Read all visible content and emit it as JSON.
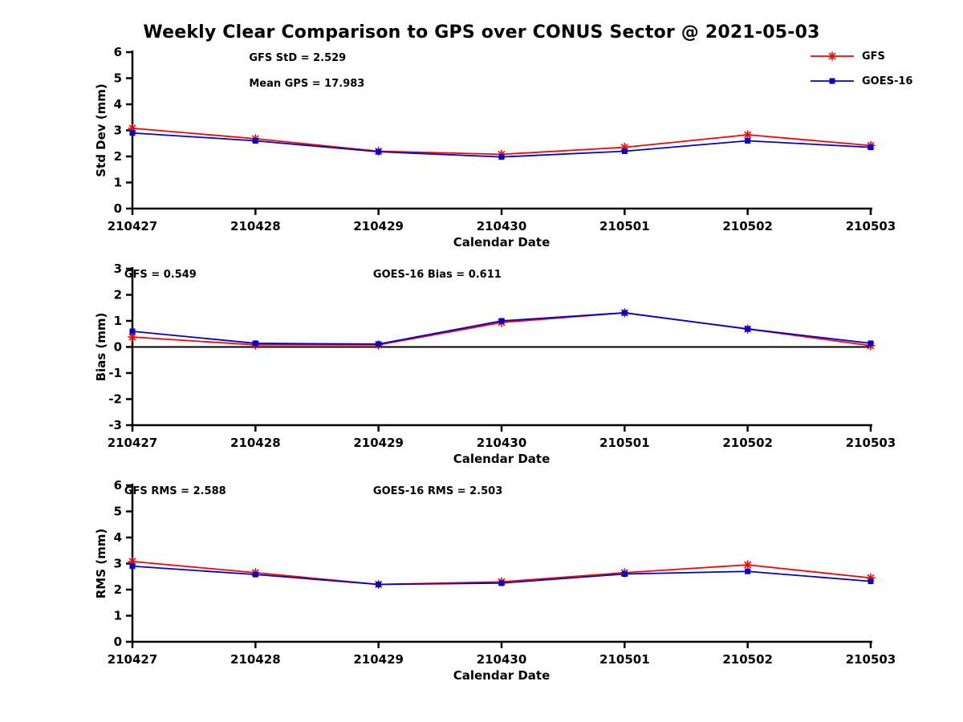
{
  "title": "Weekly Clear Comparison to GPS over CONUS Sector @ 2021-05-03",
  "legend": [
    {
      "label": "GFS",
      "color": "#ff0000",
      "marker": "asterisk"
    },
    {
      "label": "GOES-16",
      "color": "#0000cc",
      "marker": "square"
    }
  ],
  "colors": {
    "gfs": "#ff0000",
    "goes16": "#0000cc",
    "axis": "#000000"
  },
  "chart_data": [
    {
      "type": "line",
      "title": "",
      "xlabel": "Calendar Date",
      "ylabel": "Std Dev (mm)",
      "ylim": [
        0,
        6
      ],
      "yticks": [
        0,
        1,
        2,
        3,
        4,
        5,
        6
      ],
      "categories": [
        "210427",
        "210428",
        "210429",
        "210430",
        "210501",
        "210502",
        "210503"
      ],
      "zero_line": false,
      "annotations": [
        {
          "text": "GFS StD = 2.529",
          "fx": 0.158,
          "fy": 0.03
        },
        {
          "text": "Mean GPS = 17.983",
          "fx": 0.158,
          "fy": 0.195
        }
      ],
      "series": [
        {
          "name": "GFS",
          "color": "#ff0000",
          "marker": "asterisk",
          "values": [
            3.08,
            2.68,
            2.2,
            2.08,
            2.35,
            2.83,
            2.42
          ]
        },
        {
          "name": "GOES-16",
          "color": "#0000cc",
          "marker": "square",
          "values": [
            2.9,
            2.6,
            2.18,
            1.98,
            2.2,
            2.6,
            2.35
          ]
        }
      ]
    },
    {
      "type": "line",
      "title": "",
      "xlabel": "Calendar Date",
      "ylabel": "Bias (mm)",
      "ylim": [
        -3,
        3
      ],
      "yticks": [
        -3,
        -2,
        -1,
        0,
        1,
        2,
        3
      ],
      "categories": [
        "210427",
        "210428",
        "210429",
        "210430",
        "210501",
        "210502",
        "210503"
      ],
      "zero_line": true,
      "annotations": [
        {
          "text": "GFS = 0.549",
          "fx": -0.011,
          "fy": 0.03
        },
        {
          "text": "GOES-16 Bias  = 0.611",
          "fx": 0.326,
          "fy": 0.03
        }
      ],
      "series": [
        {
          "name": "GFS",
          "color": "#ff0000",
          "marker": "asterisk",
          "values": [
            0.38,
            0.08,
            0.08,
            0.94,
            1.31,
            0.69,
            0.05
          ]
        },
        {
          "name": "GOES-16",
          "color": "#0000cc",
          "marker": "square",
          "values": [
            0.6,
            0.14,
            0.11,
            1.0,
            1.31,
            0.69,
            0.14
          ]
        }
      ]
    },
    {
      "type": "line",
      "title": "",
      "xlabel": "Calendar Date",
      "ylabel": "RMS (mm)",
      "ylim": [
        0,
        6
      ],
      "yticks": [
        0,
        1,
        2,
        3,
        4,
        5,
        6
      ],
      "categories": [
        "210427",
        "210428",
        "210429",
        "210430",
        "210501",
        "210502",
        "210503"
      ],
      "zero_line": false,
      "annotations": [
        {
          "text": "GFS RMS = 2.588",
          "fx": -0.011,
          "fy": 0.03
        },
        {
          "text": "GOES-16 RMS = 2.503",
          "fx": 0.326,
          "fy": 0.03
        }
      ],
      "series": [
        {
          "name": "GFS",
          "color": "#ff0000",
          "marker": "asterisk",
          "values": [
            3.08,
            2.65,
            2.2,
            2.3,
            2.65,
            2.95,
            2.45
          ]
        },
        {
          "name": "GOES-16",
          "color": "#0000cc",
          "marker": "square",
          "values": [
            2.9,
            2.58,
            2.2,
            2.25,
            2.6,
            2.7,
            2.32
          ]
        }
      ]
    }
  ]
}
